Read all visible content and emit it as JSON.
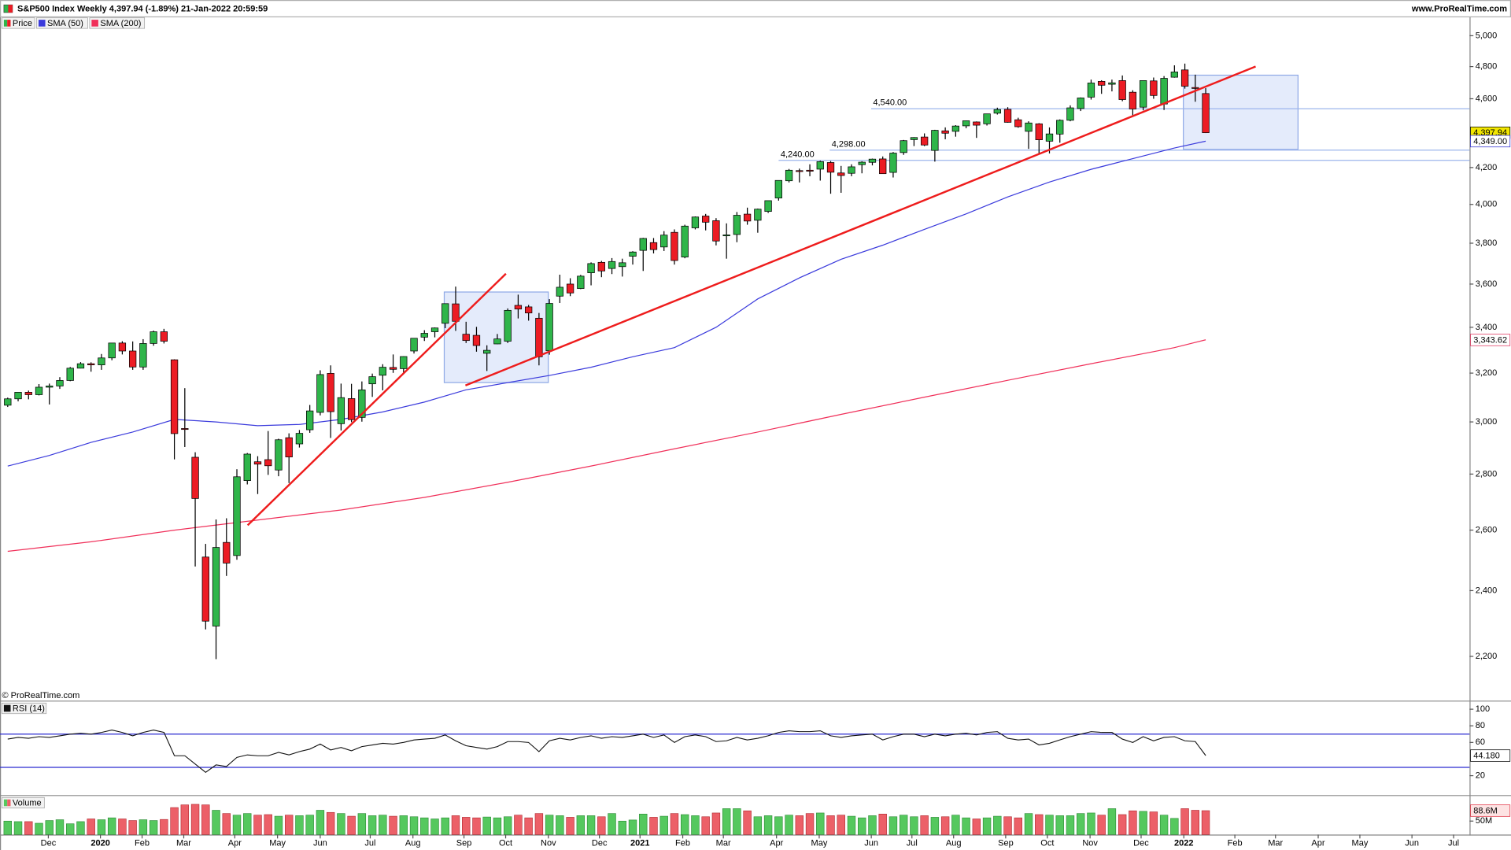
{
  "header": {
    "title": "S&P500 Index Weekly 4,397.94 (-1.89%) 21-Jan-2022 20:59:59",
    "site": "www.ProRealTime.com",
    "copyright": "© ProRealTime.com"
  },
  "chart_data": [
    {
      "type": "candlestick",
      "name": "Price",
      "colors": {
        "up": "#2fb54a",
        "down": "#ec1c24"
      },
      "ohlc": {
        "open": [
          3067,
          3093,
          3120,
          3110,
          3141,
          3146,
          3169,
          3221,
          3240,
          3235,
          3265,
          3330,
          3295,
          3226,
          3328,
          3380,
          3257,
          2974,
          2863,
          2509,
          2290,
          2558,
          2514,
          2776,
          2846,
          2854,
          2815,
          2938,
          2914,
          2969,
          3038,
          3199,
          2993,
          3094,
          3018,
          3155,
          3191,
          3224,
          3219,
          3295,
          3356,
          3380,
          3418,
          3507,
          3369,
          3364,
          3285,
          3326,
          3338,
          3500,
          3493,
          3441,
          3296,
          3543,
          3600,
          3579,
          3654,
          3705,
          3675,
          3684,
          3735,
          3764,
          3803,
          3781,
          3855,
          3731,
          3878,
          3939,
          3915,
          3842,
          3844,
          3949,
          3917,
          3963,
          4034,
          4127,
          4183,
          4185,
          4191,
          4228,
          4170,
          4168,
          4216,
          4229,
          4248,
          4173,
          4284,
          4358,
          4373,
          4296,
          4409,
          4406,
          4438,
          4461,
          4450,
          4513,
          4536,
          4474,
          4406,
          4450,
          4349,
          4390,
          4471,
          4541,
          4610,
          4707,
          4689,
          4712,
          4640,
          4549,
          4710,
          4568,
          4733,
          4779,
          4669,
          4632
        ],
        "high": [
          3098,
          3120,
          3127,
          3154,
          3156,
          3183,
          3226,
          3247,
          3246,
          3282,
          3330,
          3338,
          3337,
          3347,
          3385,
          3393,
          3259,
          3137,
          2882,
          2553,
          2637,
          2641,
          2818,
          2879,
          2867,
          2964,
          2934,
          2955,
          2968,
          3068,
          3212,
          3233,
          3156,
          3155,
          3165,
          3198,
          3238,
          3280,
          3272,
          3352,
          3387,
          3399,
          3509,
          3588,
          3425,
          3402,
          3320,
          3370,
          3486,
          3550,
          3502,
          3465,
          3529,
          3645,
          3628,
          3644,
          3705,
          3712,
          3726,
          3723,
          3760,
          3827,
          3826,
          3861,
          3870,
          3894,
          3937,
          3950,
          3928,
          3901,
          3960,
          3983,
          3978,
          4020,
          4129,
          4192,
          4194,
          4218,
          4238,
          4236,
          4209,
          4218,
          4235,
          4250,
          4262,
          4287,
          4356,
          4372,
          4394,
          4415,
          4429,
          4442,
          4469,
          4464,
          4510,
          4546,
          4549,
          4486,
          4465,
          4454,
          4429,
          4476,
          4560,
          4608,
          4718,
          4714,
          4718,
          4744,
          4652,
          4713,
          4731,
          4740,
          4808,
          4819,
          4749,
          4665
        ],
        "low": [
          3060,
          3083,
          3091,
          3107,
          3070,
          3134,
          3166,
          3220,
          3206,
          3214,
          3255,
          3280,
          3214,
          3214,
          3318,
          3328,
          2855,
          2902,
          2478,
          2280,
          2192,
          2447,
          2500,
          2762,
          2727,
          2797,
          2792,
          2767,
          2900,
          2957,
          3026,
          2937,
          2966,
          2999,
          3001,
          3101,
          3128,
          3201,
          3200,
          3284,
          3339,
          3355,
          3396,
          3384,
          3330,
          3292,
          3209,
          3325,
          3330,
          3440,
          3430,
          3233,
          3279,
          3511,
          3543,
          3576,
          3594,
          3633,
          3648,
          3636,
          3694,
          3663,
          3749,
          3761,
          3694,
          3725,
          3870,
          3865,
          3789,
          3723,
          3805,
          3894,
          3853,
          3955,
          4020,
          4118,
          4118,
          4152,
          4128,
          4057,
          4062,
          4152,
          4168,
          4212,
          4165,
          4145,
          4271,
          4321,
          4321,
          4233,
          4360,
          4375,
          4424,
          4368,
          4440,
          4505,
          4457,
          4427,
          4305,
          4279,
          4279,
          4340,
          4465,
          4526,
          4595,
          4630,
          4645,
          4585,
          4495,
          4530,
          4600,
          4532,
          4730,
          4662,
          4582,
          4396
        ],
        "close": [
          3093,
          3120,
          3110,
          3141,
          3146,
          3169,
          3221,
          3240,
          3235,
          3265,
          3330,
          3295,
          3226,
          3328,
          3380,
          3338,
          2954,
          2972,
          2711,
          2305,
          2541,
          2489,
          2790,
          2875,
          2837,
          2831,
          2930,
          2864,
          2955,
          3044,
          3194,
          3041,
          3098,
          3009,
          3130,
          3185,
          3225,
          3216,
          3271,
          3351,
          3373,
          3397,
          3508,
          3427,
          3341,
          3319,
          3298,
          3348,
          3477,
          3483,
          3465,
          3270,
          3509,
          3585,
          3558,
          3638,
          3699,
          3663,
          3709,
          3703,
          3756,
          3824,
          3768,
          3841,
          3714,
          3887,
          3934,
          3907,
          3811,
          3842,
          3943,
          3913,
          3975,
          4020,
          4129,
          4185,
          4180,
          4181,
          4233,
          4174,
          4156,
          4204,
          4230,
          4247,
          4166,
          4281,
          4352,
          4370,
          4327,
          4412,
          4395,
          4437,
          4468,
          4442,
          4509,
          4535,
          4459,
          4433,
          4455,
          4357,
          4391,
          4471,
          4545,
          4605,
          4697,
          4683,
          4698,
          4595,
          4538,
          4712,
          4620,
          4726,
          4766,
          4677,
          4663,
          4398
        ]
      },
      "series": [
        {
          "name": "SMA (50)",
          "color": "#3b3bdc",
          "x": [
            0,
            4,
            8,
            12,
            16,
            20,
            24,
            28,
            32,
            36,
            40,
            44,
            48,
            52,
            56,
            60,
            64,
            68,
            72,
            76,
            80,
            84,
            88,
            92,
            96,
            100,
            104,
            108,
            112,
            115
          ],
          "values": [
            2830,
            2870,
            2920,
            2960,
            3010,
            3000,
            2985,
            2990,
            3010,
            3040,
            3080,
            3130,
            3160,
            3190,
            3225,
            3270,
            3310,
            3400,
            3530,
            3630,
            3720,
            3790,
            3870,
            3950,
            4040,
            4120,
            4190,
            4250,
            4310,
            4349
          ]
        },
        {
          "name": "SMA (200)",
          "color": "#f0305a",
          "x": [
            0,
            8,
            16,
            24,
            32,
            40,
            48,
            56,
            64,
            72,
            80,
            88,
            96,
            104,
            112,
            115
          ],
          "values": [
            2528,
            2560,
            2600,
            2635,
            2670,
            2715,
            2770,
            2830,
            2895,
            2960,
            3030,
            3100,
            3170,
            3240,
            3310,
            3344
          ]
        }
      ],
      "xlim": [
        -0.74,
        140.33
      ],
      "xticks": [
        {
          "value": 3.9,
          "label": "Dec"
        },
        {
          "value": 8.9,
          "label": "2020"
        },
        {
          "value": 12.9,
          "label": "Feb"
        },
        {
          "value": 16.9,
          "label": "Mar"
        },
        {
          "value": 21.8,
          "label": "Apr"
        },
        {
          "value": 25.9,
          "label": "May"
        },
        {
          "value": 30.0,
          "label": "Jun"
        },
        {
          "value": 34.8,
          "label": "Jul"
        },
        {
          "value": 38.9,
          "label": "Aug"
        },
        {
          "value": 43.8,
          "label": "Sep"
        },
        {
          "value": 47.8,
          "label": "Oct"
        },
        {
          "value": 51.9,
          "label": "Nov"
        },
        {
          "value": 56.8,
          "label": "Dec"
        },
        {
          "value": 60.7,
          "label": "2021"
        },
        {
          "value": 64.8,
          "label": "Feb"
        },
        {
          "value": 68.7,
          "label": "Mar"
        },
        {
          "value": 73.8,
          "label": "Apr"
        },
        {
          "value": 77.9,
          "label": "May"
        },
        {
          "value": 82.9,
          "label": "Jun"
        },
        {
          "value": 86.8,
          "label": "Jul"
        },
        {
          "value": 90.8,
          "label": "Aug"
        },
        {
          "value": 95.8,
          "label": "Sep"
        },
        {
          "value": 99.8,
          "label": "Oct"
        },
        {
          "value": 103.9,
          "label": "Nov"
        },
        {
          "value": 108.8,
          "label": "Dec"
        },
        {
          "value": 112.9,
          "label": "2022"
        },
        {
          "value": 117.8,
          "label": "Feb"
        },
        {
          "value": 121.7,
          "label": "Mar"
        },
        {
          "value": 125.8,
          "label": "Apr"
        },
        {
          "value": 129.8,
          "label": "May"
        },
        {
          "value": 134.8,
          "label": "Jun"
        },
        {
          "value": 138.8,
          "label": "Jul"
        }
      ],
      "ylim": [
        2075,
        5123
      ],
      "log": true,
      "yticks": [
        {
          "value": 2200,
          "label": "2,200"
        },
        {
          "value": 2400,
          "label": "2,400"
        },
        {
          "value": 2600,
          "label": "2,600"
        },
        {
          "value": 2800,
          "label": "2,800"
        },
        {
          "value": 3000,
          "label": "3,000"
        },
        {
          "value": 3200,
          "label": "3,200"
        },
        {
          "value": 3400,
          "label": "3,400"
        },
        {
          "value": 3600,
          "label": "3,600"
        },
        {
          "value": 3800,
          "label": "3,800"
        },
        {
          "value": 4000,
          "label": "4,000"
        },
        {
          "value": 4200,
          "label": "4,200"
        },
        {
          "value": 4600,
          "label": "4,600"
        },
        {
          "value": 4800,
          "label": "4,800"
        },
        {
          "value": 5000,
          "label": "5,000"
        }
      ],
      "levels": [
        {
          "value": 4540,
          "label": "4,540.00"
        },
        {
          "value": 4298,
          "label": "4,298.00"
        },
        {
          "value": 4240,
          "label": "4,240.00"
        }
      ],
      "level_color": "#9db5ec",
      "tags": [
        {
          "value": 4397.94,
          "label": "4,397.94",
          "fill": "#f2e600",
          "color": "#000000"
        },
        {
          "value": 4349,
          "label": "4,349.00",
          "fill": "#ffffff",
          "color": "#2a2ad0"
        },
        {
          "value": 3343.62,
          "label": "3,343.62",
          "fill": "#ffffff",
          "color": "#e0305a"
        }
      ]
    },
    {
      "type": "line",
      "name": "RSI (14)",
      "color": "#111111",
      "values": [
        64,
        66,
        65,
        67,
        66,
        68,
        70,
        71,
        70,
        72,
        75,
        72,
        68,
        72,
        75,
        72,
        44,
        44,
        34,
        24,
        33,
        31,
        42,
        45,
        44,
        44,
        48,
        45,
        49,
        52,
        58,
        51,
        54,
        50,
        55,
        57,
        59,
        58,
        60,
        63,
        64,
        65,
        69,
        62,
        56,
        54,
        52,
        55,
        61,
        61,
        60,
        49,
        62,
        65,
        63,
        66,
        68,
        65,
        67,
        66,
        68,
        70,
        66,
        69,
        60,
        67,
        69,
        67,
        61,
        62,
        66,
        63,
        65,
        68,
        72,
        74,
        73,
        73,
        74,
        68,
        66,
        68,
        69,
        70,
        63,
        67,
        70,
        70,
        67,
        70,
        68,
        70,
        71,
        69,
        72,
        73,
        65,
        63,
        64,
        57,
        59,
        63,
        67,
        70,
        73,
        72,
        72,
        64,
        60,
        67,
        62,
        66,
        67,
        62,
        61,
        44.18
      ],
      "ylim": [
        -1,
        108
      ],
      "yticks": [
        100,
        80,
        60,
        20
      ],
      "levels": [
        70,
        30
      ],
      "level_color": "#2a2ad0",
      "tags": [
        {
          "value": 44.18,
          "label": "44.180",
          "fill": "#ffffff",
          "color": "#000000"
        }
      ]
    },
    {
      "type": "bar",
      "name": "Volume",
      "colors": {
        "up": "#55c85e",
        "down": "#ec6068"
      },
      "values": [
        50000000.0,
        48000000.0,
        48000000.0,
        42000000.0,
        52000000.0,
        55000000.0,
        40000000.0,
        48000000.0,
        58000000.0,
        55000000.0,
        62000000.0,
        58000000.0,
        52000000.0,
        55000000.0,
        52000000.0,
        56000000.0,
        100000000.0,
        110000000.0,
        112000000.0,
        110000000.0,
        90000000.0,
        78000000.0,
        72000000.0,
        78000000.0,
        72000000.0,
        74000000.0,
        68000000.0,
        72000000.0,
        70000000.0,
        72000000.0,
        90000000.0,
        82000000.0,
        78000000.0,
        68000000.0,
        78000000.0,
        70000000.0,
        72000000.0,
        68000000.0,
        70000000.0,
        66000000.0,
        62000000.0,
        58000000.0,
        62000000.0,
        70000000.0,
        64000000.0,
        62000000.0,
        65000000.0,
        62000000.0,
        66000000.0,
        72000000.0,
        62000000.0,
        78000000.0,
        72000000.0,
        70000000.0,
        64000000.0,
        70000000.0,
        70000000.0,
        66000000.0,
        78000000.0,
        50000000.0,
        54000000.0,
        76000000.0,
        64000000.0,
        68000000.0,
        78000000.0,
        74000000.0,
        70000000.0,
        66000000.0,
        80000000.0,
        96000000.0,
        96000000.0,
        88000000.0,
        66000000.0,
        70000000.0,
        66000000.0,
        72000000.0,
        70000000.0,
        78000000.0,
        80000000.0,
        70000000.0,
        72000000.0,
        68000000.0,
        62000000.0,
        70000000.0,
        76000000.0,
        66000000.0,
        72000000.0,
        66000000.0,
        70000000.0,
        64000000.0,
        66000000.0,
        72000000.0,
        62000000.0,
        58000000.0,
        62000000.0,
        68000000.0,
        66000000.0,
        62000000.0,
        78000000.0,
        74000000.0,
        72000000.0,
        70000000.0,
        70000000.0,
        78000000.0,
        80000000.0,
        72000000.0,
        96000000.0,
        74000000.0,
        88000000.0,
        86000000.0,
        84000000.0,
        72000000.0,
        60000000.0,
        96000000.0,
        90000000.0,
        88600000.0
      ],
      "ylim": [
        0,
        132000000.0
      ],
      "yticks": [
        {
          "value": 50000000.0,
          "label": "50M"
        }
      ],
      "tags": [
        {
          "value": 88600000.0,
          "label": "88.6M",
          "fill": "#fde3e3",
          "color": "#e03040"
        }
      ]
    }
  ]
}
